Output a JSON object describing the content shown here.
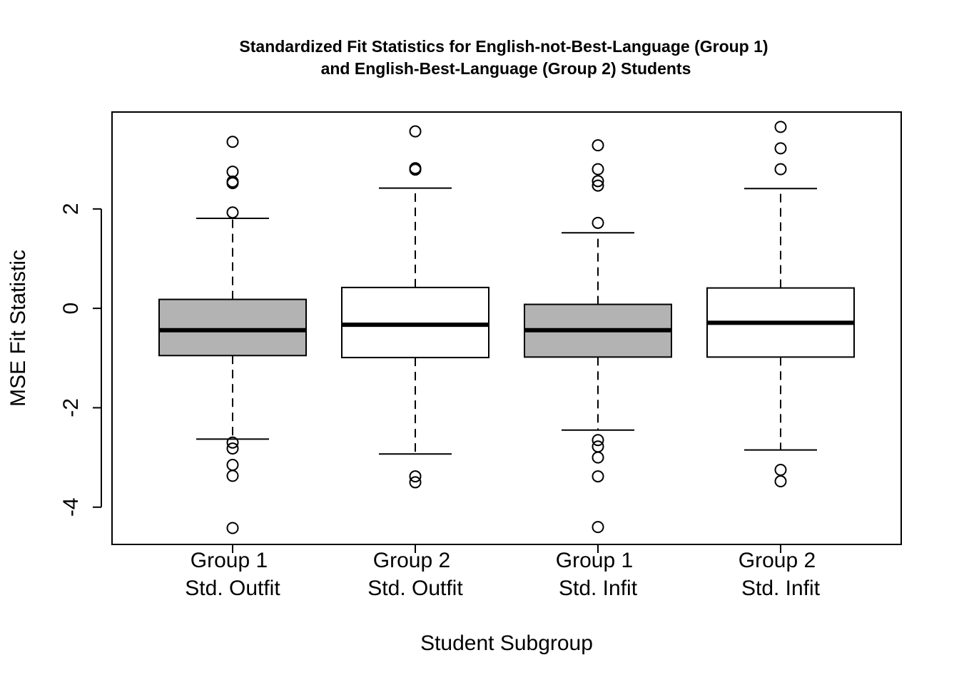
{
  "chart_data": {
    "type": "boxplot",
    "title": [
      "Standardized Fit Statistics for English-not-Best-Language (Group 1)",
      "and English-Best-Language (Group 2) Students"
    ],
    "xlabel": "Student Subgroup",
    "ylabel": "MSE Fit Statistic",
    "ylim": [
      -4.75,
      3.95
    ],
    "yticks": [
      -4,
      -2,
      0,
      2
    ],
    "grid": false,
    "legend": "none",
    "colors": {
      "group1_fill": "#b3b3b3",
      "group2_fill": "#ffffff",
      "stroke": "#000000"
    },
    "categories": [
      {
        "line1": "Group 1",
        "line2": "Std. Outfit"
      },
      {
        "line1": "Group 2",
        "line2": "Std. Outfit"
      },
      {
        "line1": "Group 1",
        "line2": "Std. Infit"
      },
      {
        "line1": "Group 2",
        "line2": "Std. Infit"
      }
    ],
    "boxes": [
      {
        "fill": "#b3b3b3",
        "q1": -0.95,
        "median": -0.44,
        "q3": 0.18,
        "whisker_low": -2.63,
        "whisker_high": 1.81,
        "outliers": [
          3.35,
          2.75,
          2.55,
          2.52,
          1.93,
          -2.7,
          -2.82,
          -3.15,
          -3.37,
          -4.42
        ]
      },
      {
        "fill": "#ffffff",
        "q1": -0.99,
        "median": -0.33,
        "q3": 0.42,
        "whisker_low": -2.93,
        "whisker_high": 2.42,
        "outliers": [
          3.56,
          2.82,
          2.79,
          -3.38,
          -3.5
        ]
      },
      {
        "fill": "#b3b3b3",
        "q1": -0.98,
        "median": -0.44,
        "q3": 0.08,
        "whisker_low": -2.45,
        "whisker_high": 1.52,
        "outliers": [
          3.28,
          2.8,
          2.56,
          2.47,
          1.72,
          -2.65,
          -2.78,
          -3.0,
          -3.38,
          -4.4
        ]
      },
      {
        "fill": "#ffffff",
        "q1": -0.98,
        "median": -0.29,
        "q3": 0.41,
        "whisker_low": -2.85,
        "whisker_high": 2.41,
        "outliers": [
          3.65,
          3.22,
          2.8,
          -3.25,
          -3.48
        ]
      }
    ]
  }
}
